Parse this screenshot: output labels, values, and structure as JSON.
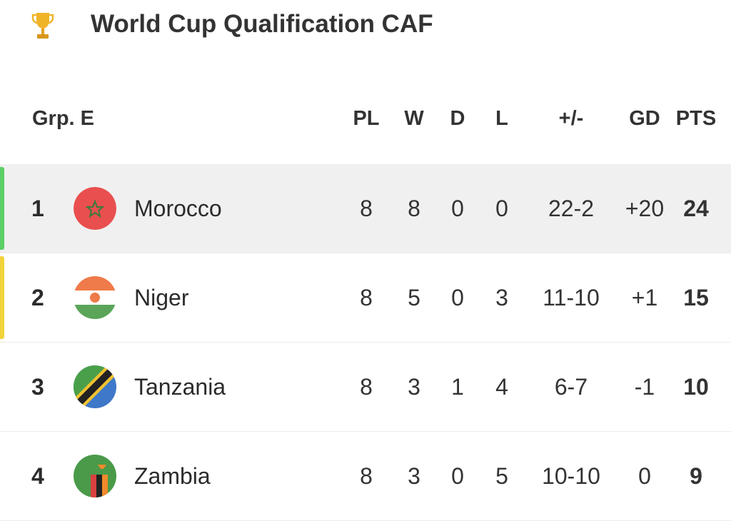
{
  "header": {
    "title": "World Cup Qualification CAF"
  },
  "table": {
    "group": "Grp. E",
    "columns": [
      "PL",
      "W",
      "D",
      "L",
      "+/-",
      "GD",
      "PTS"
    ],
    "rows": [
      {
        "rank": "1",
        "team": "Morocco",
        "cells": [
          "8",
          "8",
          "0",
          "0",
          "22-2",
          "+20",
          "24"
        ]
      },
      {
        "rank": "2",
        "team": "Niger",
        "cells": [
          "8",
          "5",
          "0",
          "3",
          "11-10",
          "+1",
          "15"
        ]
      },
      {
        "rank": "3",
        "team": "Tanzania",
        "cells": [
          "8",
          "3",
          "1",
          "4",
          "6-7",
          "-1",
          "10"
        ]
      },
      {
        "rank": "4",
        "team": "Zambia",
        "cells": [
          "8",
          "3",
          "0",
          "5",
          "10-10",
          "0",
          "9"
        ]
      }
    ]
  }
}
